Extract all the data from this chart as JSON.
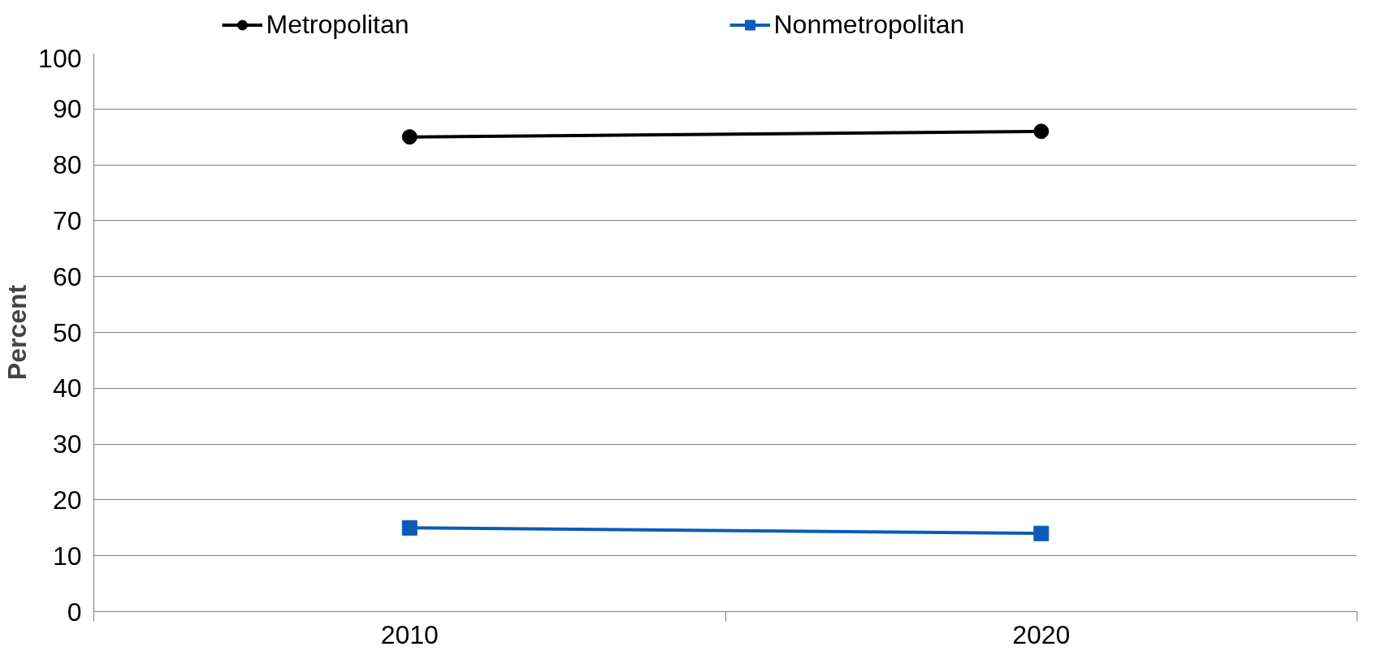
{
  "chart_data": {
    "type": "line",
    "ylabel": "Percent",
    "categories": [
      "2010",
      "2020"
    ],
    "series": [
      {
        "name": "Metropolitan",
        "color": "#000000",
        "marker": "circle",
        "values": [
          85,
          86
        ]
      },
      {
        "name": "Nonmetropolitan",
        "color": "#0a5cb8",
        "marker": "square",
        "values": [
          15,
          14
        ]
      }
    ],
    "ylim": [
      0,
      100
    ],
    "yticks": [
      0,
      10,
      20,
      30,
      40,
      50,
      60,
      70,
      80,
      90,
      100
    ],
    "grid": "y",
    "legend": "top",
    "line_style": "solid"
  }
}
